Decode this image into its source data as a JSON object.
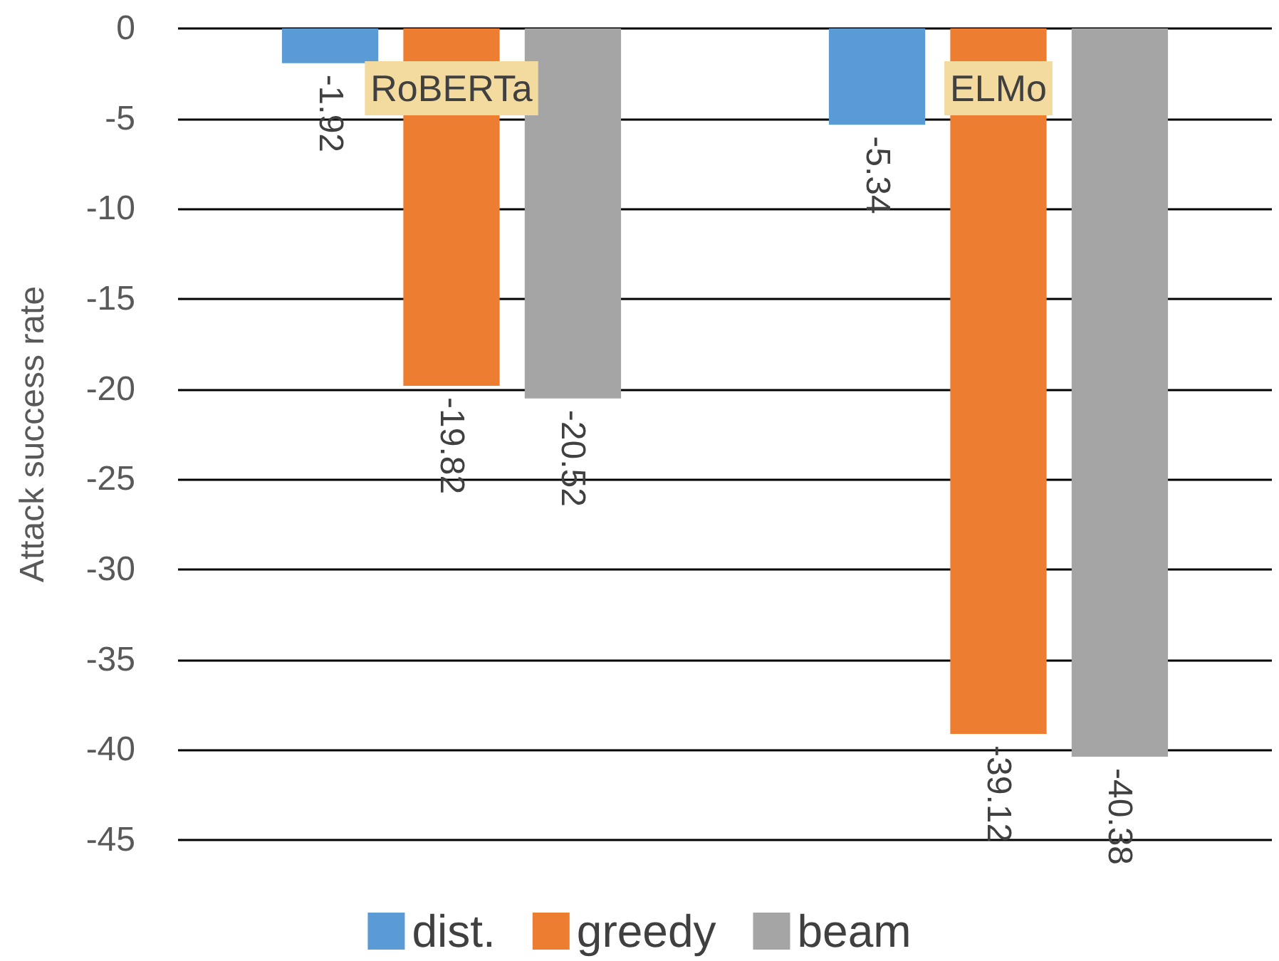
{
  "chart_data": {
    "type": "bar",
    "ylabel": "Attack success rate",
    "categories": [
      "RoBERTa",
      "ELMo"
    ],
    "series": [
      {
        "name": "dist.",
        "color": "#5b9bd5",
        "values": [
          -1.92,
          -5.34
        ]
      },
      {
        "name": "greedy",
        "color": "#ed7d31",
        "values": [
          -19.82,
          -39.12
        ]
      },
      {
        "name": "beam",
        "color": "#a5a5a5",
        "values": [
          -20.52,
          -40.38
        ]
      }
    ],
    "ylim": [
      -45,
      0
    ],
    "yticks": [
      0,
      -5,
      -10,
      -15,
      -20,
      -25,
      -30,
      -35,
      -40,
      -45
    ],
    "grid": "y",
    "legend": "bottom",
    "data_labels": true
  }
}
